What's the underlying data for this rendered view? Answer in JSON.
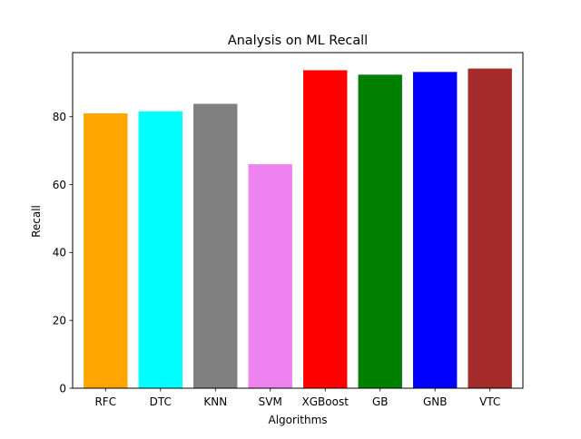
{
  "chart_data": {
    "type": "bar",
    "title": "Analysis on ML Recall",
    "xlabel": "Algorithms",
    "ylabel": "Recall",
    "categories": [
      "RFC",
      "DTC",
      "KNN",
      "SVM",
      "XGBoost",
      "GB",
      "GNB",
      "VTC"
    ],
    "values": [
      81.0,
      81.6,
      83.8,
      66.0,
      93.7,
      92.4,
      93.2,
      94.2
    ],
    "colors": [
      "#ffa500",
      "#00ffff",
      "#808080",
      "#ee82ee",
      "#ff0000",
      "#008000",
      "#0000ff",
      "#a52a2a"
    ],
    "ylim": [
      0,
      98.9
    ],
    "yticks": [
      0,
      20,
      40,
      60,
      80
    ],
    "grid": false,
    "legend": false
  }
}
